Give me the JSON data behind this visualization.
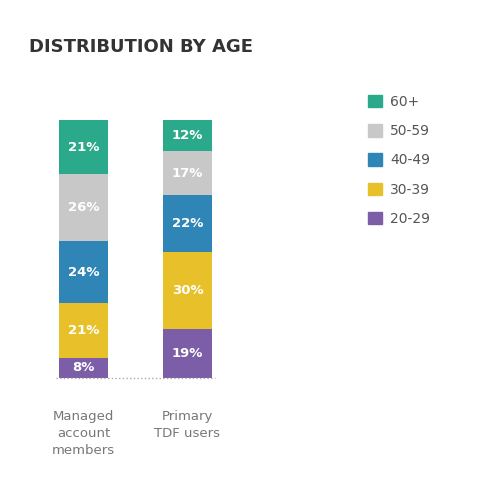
{
  "title": "DISTRIBUTION BY AGE",
  "categories": [
    "Managed\naccount\nmembers",
    "Primary\nTDF users"
  ],
  "segments": [
    {
      "label": "20-29",
      "color": "#7b5ea7",
      "values": [
        8,
        19
      ]
    },
    {
      "label": "30-39",
      "color": "#e8c12a",
      "values": [
        21,
        30
      ]
    },
    {
      "label": "40-49",
      "color": "#2f85b5",
      "values": [
        24,
        22
      ]
    },
    {
      "label": "50-59",
      "color": "#c8c8c8",
      "values": [
        26,
        17
      ]
    },
    {
      "label": "60+",
      "color": "#2aaa8a",
      "values": [
        21,
        12
      ]
    }
  ],
  "bar_width": 0.13,
  "bar_positions": [
    0.22,
    0.5
  ],
  "xlim": [
    0.06,
    0.9
  ],
  "ylim": [
    -6,
    115
  ],
  "background_color": "#ffffff",
  "title_fontsize": 13,
  "label_fontsize": 9.5,
  "legend_fontsize": 10,
  "pct_fontsize": 9.5,
  "title_color": "#333333",
  "label_color": "#777777",
  "legend_color": "#555555"
}
